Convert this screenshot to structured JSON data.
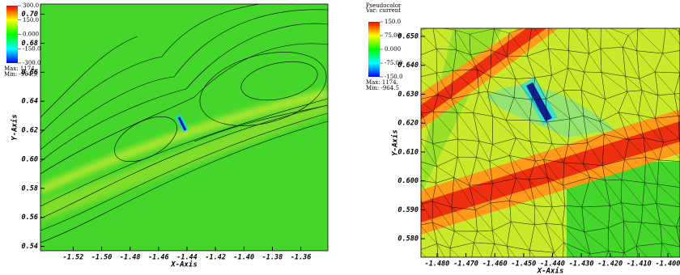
{
  "chart_data": [
    {
      "type": "pseudocolor",
      "x_label": "X-Axis",
      "y_label": "Y-Axis",
      "xlim": [
        -1.543,
        -1.341
      ],
      "ylim": [
        0.537,
        0.707
      ],
      "xticks": [
        -1.52,
        {
          "value": -1.5,
          "label": "-1.50"
        },
        -1.48,
        -1.46,
        -1.44,
        -1.42,
        {
          "value": -1.4,
          "label": "-1.40"
        },
        -1.38,
        -1.36
      ],
      "yticks": [
        0.54,
        0.56,
        0.58,
        {
          "value": 0.6,
          "label": "0.60"
        },
        0.62,
        0.64,
        0.66,
        0.68,
        {
          "value": 0.7,
          "label": "0.70"
        }
      ],
      "colormap": [
        "#ff0000",
        "#ffff00",
        "#00ff00",
        "#00ffff",
        "#0000ff"
      ],
      "legend": {
        "ticks": [
          {
            "value": 300,
            "label": "300.0"
          },
          {
            "value": 150,
            "label": "150.0"
          },
          {
            "value": 0,
            "label": "0.000"
          },
          {
            "value": -150,
            "label": "-150.0"
          },
          {
            "value": -300,
            "label": "-300.0"
          }
        ],
        "max": "Max: 1174.",
        "min": "Min: -964.5"
      }
    },
    {
      "type": "pseudocolor",
      "x_label": "X-Axis",
      "y_label": "Y-Axis",
      "xlim": [
        -1.4856,
        -1.3958
      ],
      "ylim": [
        0.5736,
        0.6528
      ],
      "xticks": [
        {
          "value": -1.48,
          "label": "-1.480"
        },
        {
          "value": -1.47,
          "label": "-1.470"
        },
        {
          "value": -1.46,
          "label": "-1.460"
        },
        {
          "value": -1.45,
          "label": "-1.450"
        },
        {
          "value": -1.44,
          "label": "-1.440"
        },
        {
          "value": -1.43,
          "label": "-1.430"
        },
        {
          "value": -1.42,
          "label": "-1.420"
        },
        {
          "value": -1.41,
          "label": "-1.410"
        },
        {
          "value": -1.4,
          "label": "-1.400"
        }
      ],
      "yticks": [
        {
          "value": 0.58,
          "label": "0.580"
        },
        {
          "value": 0.59,
          "label": "0.590"
        },
        {
          "value": 0.6,
          "label": "0.600"
        },
        {
          "value": 0.61,
          "label": "0.610"
        },
        {
          "value": 0.62,
          "label": "0.620"
        },
        {
          "value": 0.63,
          "label": "0.630"
        },
        {
          "value": 0.64,
          "label": "0.640"
        },
        {
          "value": 0.65,
          "label": "0.650"
        }
      ],
      "colormap": [
        "#ff0000",
        "#ffff00",
        "#00ff00",
        "#00ffff",
        "#0000ff"
      ],
      "legend": {
        "title": "Pseudocolor",
        "var": "Var: current",
        "ticks": [
          {
            "value": 150,
            "label": "150.0"
          },
          {
            "value": 75,
            "label": "75.00"
          },
          {
            "value": 0,
            "label": "0.000"
          },
          {
            "value": -75,
            "label": "-75.00"
          },
          {
            "value": -150,
            "label": "-150.0"
          }
        ],
        "max": "Max: 1174.",
        "min": "Min: -964.5"
      }
    }
  ]
}
